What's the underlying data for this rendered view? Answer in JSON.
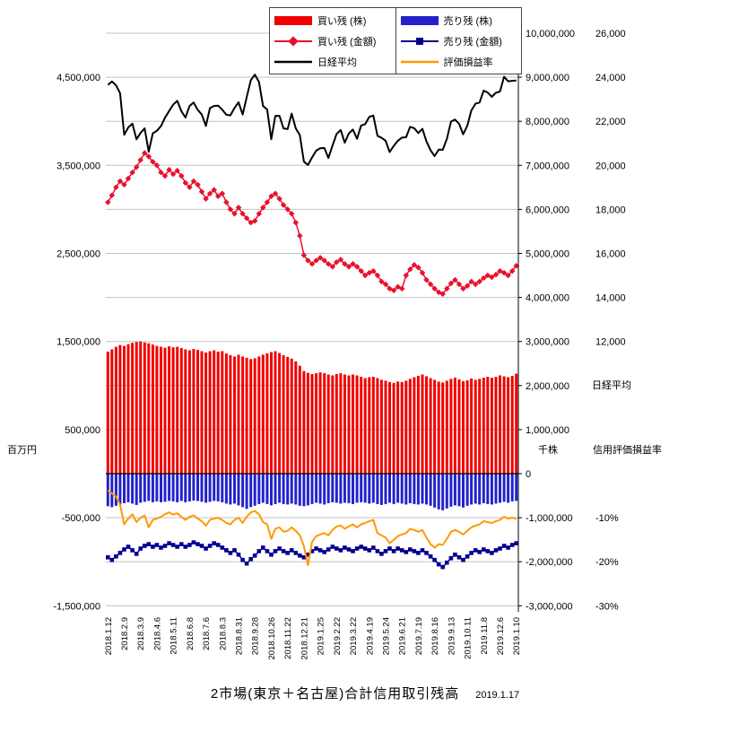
{
  "title": {
    "text": "2市場(東京＋名古屋)合計信用取引残高",
    "date": "2019.1.17"
  },
  "chart_data": {
    "type": "combo",
    "n_points": 101,
    "x_tick_every": 4,
    "x_tick_labels": [
      "2018.1.12",
      "2018.2.9",
      "2018.3.9",
      "2018.4.6",
      "2018.5.11",
      "2018.6.8",
      "2018.7.6",
      "2018.8.3",
      "2018.8.31",
      "2018.9.28",
      "2018.10.26",
      "2018.11.22",
      "2018.12.21",
      "2019.1.25",
      "2019.2.22",
      "2019.3.22",
      "2019.4.19",
      "2019.5.24",
      "2019.6.21",
      "2019.7.19",
      "2019.8.16",
      "2019.9.13",
      "2019.10.11",
      "2019.11.8",
      "2019.12.6",
      "2019.1.10"
    ],
    "axes": {
      "left_mln_yen": {
        "title": "百万円",
        "ticks": [
          4500000,
          3500000,
          2500000,
          1500000,
          500000,
          -500000,
          -1500000
        ]
      },
      "right_thousand_shares": {
        "title": "千株",
        "ticks": [
          10000000,
          9000000,
          8000000,
          7000000,
          6000000,
          5000000,
          4000000,
          3000000,
          2000000,
          1000000,
          0,
          -1000000,
          -2000000,
          -3000000
        ]
      },
      "right_nikkei": {
        "title": "日経平均",
        "ticks": [
          26000,
          24000,
          22000,
          20000,
          18000,
          16000,
          14000,
          12000
        ]
      },
      "right_pct": {
        "title": "信用評価損益率",
        "ticks": [
          -10,
          -20,
          -30
        ]
      }
    },
    "alignment_note": "master scale = thousand_shares; mln_yen x2 = master; nikkei 24000 at 9000000, 2000 per 1000000; pct -10 at -1000000",
    "series": [
      {
        "id": "buy_shares",
        "name": "買い残 (株)",
        "type": "bar",
        "axis": "thousand_shares",
        "color": "#f20000",
        "values": [
          2770000,
          2820000,
          2880000,
          2920000,
          2900000,
          2940000,
          2970000,
          2990000,
          3000000,
          2980000,
          2960000,
          2930000,
          2900000,
          2880000,
          2860000,
          2890000,
          2870000,
          2880000,
          2850000,
          2820000,
          2800000,
          2830000,
          2810000,
          2780000,
          2750000,
          2780000,
          2800000,
          2770000,
          2780000,
          2730000,
          2690000,
          2660000,
          2700000,
          2660000,
          2630000,
          2600000,
          2620000,
          2660000,
          2700000,
          2730000,
          2760000,
          2780000,
          2740000,
          2690000,
          2650000,
          2610000,
          2550000,
          2450000,
          2330000,
          2290000,
          2260000,
          2280000,
          2300000,
          2280000,
          2250000,
          2230000,
          2260000,
          2280000,
          2250000,
          2230000,
          2250000,
          2230000,
          2200000,
          2170000,
          2190000,
          2200000,
          2170000,
          2130000,
          2110000,
          2080000,
          2060000,
          2090000,
          2080000,
          2110000,
          2150000,
          2190000,
          2220000,
          2250000,
          2210000,
          2170000,
          2130000,
          2090000,
          2070000,
          2110000,
          2150000,
          2180000,
          2140000,
          2100000,
          2120000,
          2160000,
          2130000,
          2150000,
          2180000,
          2200000,
          2180000,
          2200000,
          2230000,
          2210000,
          2190000,
          2220000,
          2270000
        ]
      },
      {
        "id": "sell_shares",
        "name": "売り残 (株)",
        "type": "bar",
        "axis": "thousand_shares",
        "color": "#2222cc",
        "values": [
          -740000,
          -760000,
          -730000,
          -700000,
          -670000,
          -650000,
          -680000,
          -710000,
          -660000,
          -640000,
          -620000,
          -650000,
          -630000,
          -650000,
          -640000,
          -620000,
          -630000,
          -650000,
          -620000,
          -650000,
          -630000,
          -610000,
          -620000,
          -640000,
          -660000,
          -640000,
          -620000,
          -630000,
          -650000,
          -680000,
          -700000,
          -680000,
          -720000,
          -760000,
          -800000,
          -760000,
          -730000,
          -690000,
          -660000,
          -690000,
          -720000,
          -690000,
          -660000,
          -690000,
          -700000,
          -680000,
          -700000,
          -730000,
          -740000,
          -720000,
          -690000,
          -660000,
          -680000,
          -700000,
          -670000,
          -650000,
          -660000,
          -680000,
          -660000,
          -670000,
          -690000,
          -660000,
          -650000,
          -660000,
          -680000,
          -660000,
          -690000,
          -710000,
          -690000,
          -660000,
          -690000,
          -660000,
          -680000,
          -700000,
          -670000,
          -690000,
          -700000,
          -680000,
          -700000,
          -730000,
          -770000,
          -810000,
          -830000,
          -790000,
          -750000,
          -720000,
          -740000,
          -770000,
          -730000,
          -700000,
          -680000,
          -700000,
          -670000,
          -690000,
          -700000,
          -680000,
          -660000,
          -640000,
          -660000,
          -630000,
          -620000
        ]
      },
      {
        "id": "buy_amount",
        "name": "買い残 (金額)",
        "type": "line",
        "marker": "diamond",
        "axis": "mln_yen",
        "color": "#e8112d",
        "line_width": 1.5,
        "values": [
          3080000,
          3160000,
          3250000,
          3320000,
          3280000,
          3350000,
          3420000,
          3480000,
          3560000,
          3640000,
          3600000,
          3540000,
          3500000,
          3420000,
          3380000,
          3450000,
          3400000,
          3440000,
          3380000,
          3300000,
          3250000,
          3320000,
          3280000,
          3200000,
          3120000,
          3180000,
          3220000,
          3150000,
          3180000,
          3080000,
          3000000,
          2950000,
          3020000,
          2950000,
          2900000,
          2850000,
          2870000,
          2950000,
          3020000,
          3080000,
          3150000,
          3180000,
          3120000,
          3050000,
          3000000,
          2950000,
          2850000,
          2700000,
          2480000,
          2420000,
          2380000,
          2420000,
          2450000,
          2420000,
          2380000,
          2350000,
          2400000,
          2430000,
          2380000,
          2350000,
          2380000,
          2350000,
          2300000,
          2250000,
          2280000,
          2300000,
          2250000,
          2180000,
          2150000,
          2100000,
          2080000,
          2120000,
          2100000,
          2250000,
          2320000,
          2370000,
          2340000,
          2280000,
          2200000,
          2150000,
          2100000,
          2060000,
          2040000,
          2100000,
          2160000,
          2200000,
          2150000,
          2100000,
          2130000,
          2180000,
          2150000,
          2180000,
          2220000,
          2250000,
          2230000,
          2260000,
          2300000,
          2280000,
          2250000,
          2300000,
          2360000
        ]
      },
      {
        "id": "sell_amount",
        "name": "売り残 (金額)",
        "type": "line",
        "marker": "square",
        "axis": "mln_yen",
        "color": "#000090",
        "line_width": 1.5,
        "values": [
          -950000,
          -980000,
          -940000,
          -900000,
          -860000,
          -830000,
          -870000,
          -910000,
          -850000,
          -820000,
          -800000,
          -830000,
          -810000,
          -840000,
          -820000,
          -790000,
          -810000,
          -830000,
          -800000,
          -830000,
          -810000,
          -780000,
          -800000,
          -820000,
          -850000,
          -820000,
          -790000,
          -810000,
          -840000,
          -870000,
          -900000,
          -870000,
          -920000,
          -980000,
          -1020000,
          -970000,
          -930000,
          -880000,
          -840000,
          -880000,
          -920000,
          -880000,
          -850000,
          -880000,
          -900000,
          -870000,
          -900000,
          -930000,
          -950000,
          -920000,
          -880000,
          -850000,
          -870000,
          -890000,
          -860000,
          -830000,
          -850000,
          -870000,
          -840000,
          -860000,
          -880000,
          -850000,
          -830000,
          -850000,
          -870000,
          -840000,
          -880000,
          -910000,
          -880000,
          -850000,
          -880000,
          -850000,
          -870000,
          -890000,
          -860000,
          -880000,
          -900000,
          -870000,
          -900000,
          -940000,
          -980000,
          -1030000,
          -1060000,
          -1010000,
          -960000,
          -920000,
          -950000,
          -980000,
          -940000,
          -900000,
          -870000,
          -890000,
          -860000,
          -880000,
          -900000,
          -870000,
          -850000,
          -820000,
          -840000,
          -810000,
          -790000
        ]
      },
      {
        "id": "nikkei",
        "name": "日経平均",
        "type": "line",
        "axis": "nikkei",
        "color": "#000000",
        "line_width": 2,
        "values": [
          23654,
          23808,
          23632,
          23275,
          21383,
          21720,
          21893,
          21181,
          21469,
          21677,
          20618,
          21454,
          21567,
          21779,
          22162,
          22468,
          22758,
          22930,
          22451,
          22171,
          22695,
          22852,
          22517,
          22305,
          21788,
          22597,
          22698,
          22713,
          22525,
          22298,
          22270,
          22602,
          22865,
          22307,
          23095,
          23870,
          24120,
          23784,
          22695,
          22532,
          21185,
          22243,
          22250,
          21680,
          21647,
          22351,
          21679,
          21375,
          20166,
          20015,
          20360,
          20666,
          20774,
          20788,
          20333,
          20900,
          21425,
          21603,
          21026,
          21451,
          21627,
          21206,
          21808,
          21871,
          22201,
          22259,
          21345,
          21250,
          21117,
          20601,
          20884,
          21117,
          21259,
          21276,
          21746,
          21686,
          21467,
          21658,
          21087,
          20685,
          20419,
          20711,
          20704,
          21200,
          21988,
          22079,
          21879,
          21410,
          21799,
          22493,
          22800,
          22851,
          23392,
          23303,
          23113,
          23294,
          23354,
          24023,
          23817,
          23838,
          23851
        ]
      },
      {
        "id": "pl_ratio",
        "name": "評価損益率",
        "type": "line",
        "axis": "pct",
        "color": "#ff9900",
        "line_width": 2,
        "values": [
          -3.8,
          -4.5,
          -5.2,
          -7.0,
          -11.5,
          -10.2,
          -9.2,
          -11.0,
          -10.0,
          -9.5,
          -12.2,
          -10.5,
          -10.2,
          -9.8,
          -9.2,
          -8.8,
          -9.3,
          -9.0,
          -9.8,
          -10.5,
          -9.8,
          -9.5,
          -10.2,
          -10.8,
          -11.8,
          -10.5,
          -10.2,
          -10.0,
          -10.5,
          -11.2,
          -11.5,
          -10.5,
          -10.0,
          -11.2,
          -9.8,
          -8.8,
          -8.5,
          -9.2,
          -11.0,
          -11.5,
          -14.8,
          -12.5,
          -12.2,
          -13.2,
          -13.0,
          -12.2,
          -13.0,
          -14.0,
          -16.5,
          -20.8,
          -15.5,
          -14.2,
          -13.8,
          -13.5,
          -14.0,
          -12.8,
          -12.0,
          -11.8,
          -12.5,
          -12.0,
          -11.5,
          -12.2,
          -11.5,
          -11.2,
          -10.8,
          -10.5,
          -13.5,
          -14.0,
          -14.5,
          -15.8,
          -15.0,
          -14.2,
          -13.8,
          -13.5,
          -12.5,
          -12.8,
          -13.2,
          -12.8,
          -14.5,
          -16.0,
          -16.8,
          -16.0,
          -16.2,
          -14.8,
          -13.2,
          -12.8,
          -13.2,
          -13.8,
          -13.0,
          -12.2,
          -11.8,
          -11.5,
          -10.8,
          -11.0,
          -11.2,
          -10.8,
          -10.5,
          -9.8,
          -10.2,
          -10.0,
          -10.3
        ]
      }
    ]
  }
}
